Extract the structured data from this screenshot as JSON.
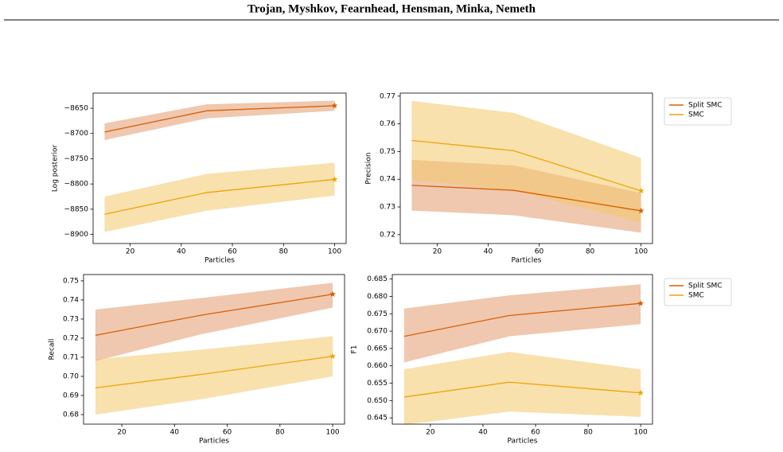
{
  "header": {
    "title": "Trojan, Myshkov, Fearnhead, Hensman, Minka, Nemeth"
  },
  "chart_data": [
    {
      "type": "line",
      "xlabel": "Particles",
      "ylabel": "Log posterior",
      "x": [
        10,
        50,
        100
      ],
      "xlim": [
        5.5,
        104.5
      ],
      "xticks": [
        20,
        40,
        60,
        80,
        100
      ],
      "ylim": [
        -8918,
        -8620
      ],
      "yticks": [
        {
          "value": -8650,
          "label": "−8650"
        },
        {
          "value": -8700,
          "label": "−8700"
        },
        {
          "value": -8750,
          "label": "−8750"
        },
        {
          "value": -8800,
          "label": "−8800"
        },
        {
          "value": -8850,
          "label": "−8850"
        },
        {
          "value": -8900,
          "label": "−8900"
        }
      ],
      "legend": false,
      "series": [
        {
          "name": "Split SMC",
          "color": "#d95f02",
          "band_color": "#e29a6e",
          "values": [
            -8697,
            -8655,
            -8645
          ],
          "lower": [
            -8713,
            -8670,
            -8655
          ],
          "upper": [
            -8680,
            -8642,
            -8635
          ]
        },
        {
          "name": "SMC",
          "color": "#f0a30a",
          "band_color": "#f2c96a",
          "values": [
            -8860,
            -8817,
            -8791
          ],
          "lower": [
            -8895,
            -8853,
            -8823
          ],
          "upper": [
            -8825,
            -8780,
            -8758
          ]
        }
      ]
    },
    {
      "type": "line",
      "xlabel": "Particles",
      "ylabel": "Precision",
      "x": [
        10,
        50,
        100
      ],
      "xlim": [
        5.5,
        104.5
      ],
      "xticks": [
        20,
        40,
        60,
        80,
        100
      ],
      "ylim": [
        0.7168,
        0.7711
      ],
      "yticks": [
        0.72,
        0.73,
        0.74,
        0.75,
        0.76,
        0.77
      ],
      "legend": true,
      "series": [
        {
          "name": "Split SMC",
          "color": "#d95f02",
          "band_color": "#e29a6e",
          "values": [
            0.7378,
            0.736,
            0.7286
          ],
          "lower": [
            0.7287,
            0.727,
            0.7207
          ],
          "upper": [
            0.747,
            0.745,
            0.735
          ]
        },
        {
          "name": "SMC",
          "color": "#f0a30a",
          "band_color": "#f2c96a",
          "values": [
            0.754,
            0.7503,
            0.7358
          ],
          "lower": [
            0.7398,
            0.736,
            0.7243
          ],
          "upper": [
            0.7683,
            0.764,
            0.7477
          ]
        }
      ]
    },
    {
      "type": "line",
      "xlabel": "Particles",
      "ylabel": "Recall",
      "x": [
        10,
        50,
        100
      ],
      "xlim": [
        5.5,
        104.5
      ],
      "xticks": [
        20,
        40,
        60,
        80,
        100
      ],
      "ylim": [
        0.675,
        0.7533
      ],
      "yticks": [
        0.68,
        0.69,
        {
          "value": 0.7,
          "label": "0.70"
        },
        0.71,
        0.72,
        0.73,
        0.74,
        0.75
      ],
      "legend": false,
      "series": [
        {
          "name": "Split SMC",
          "color": "#d95f02",
          "band_color": "#e29a6e",
          "values": [
            0.7215,
            0.732,
            0.743
          ],
          "lower": [
            0.708,
            0.722,
            0.736
          ],
          "upper": [
            0.735,
            0.741,
            0.749
          ]
        },
        {
          "name": "SMC",
          "color": "#f0a30a",
          "band_color": "#f2c96a",
          "values": [
            0.694,
            0.701,
            0.7105
          ],
          "lower": [
            0.68,
            0.688,
            0.7
          ],
          "upper": [
            0.709,
            0.714,
            0.721
          ]
        }
      ]
    },
    {
      "type": "line",
      "xlabel": "Particles",
      "ylabel": "F1",
      "x": [
        10,
        50,
        100
      ],
      "xlim": [
        5.5,
        104.5
      ],
      "xticks": [
        20,
        40,
        60,
        80,
        100
      ],
      "ylim": [
        0.6432,
        0.6863
      ],
      "yticks": [
        0.645,
        {
          "value": 0.65,
          "label": "0.650"
        },
        0.655,
        {
          "value": 0.66,
          "label": "0.660"
        },
        0.665,
        {
          "value": 0.67,
          "label": "0.670"
        },
        0.675,
        {
          "value": 0.68,
          "label": "0.680"
        },
        0.685
      ],
      "legend": true,
      "series": [
        {
          "name": "Split SMC",
          "color": "#d95f02",
          "band_color": "#e29a6e",
          "values": [
            0.6685,
            0.6745,
            0.678
          ],
          "lower": [
            0.661,
            0.6685,
            0.672
          ],
          "upper": [
            0.6765,
            0.6803,
            0.6835
          ]
        },
        {
          "name": "SMC",
          "color": "#f0a30a",
          "band_color": "#f2c96a",
          "values": [
            0.651,
            0.6553,
            0.6522
          ],
          "lower": [
            0.643,
            0.6468,
            0.6453
          ],
          "upper": [
            0.659,
            0.664,
            0.659
          ]
        }
      ]
    }
  ]
}
